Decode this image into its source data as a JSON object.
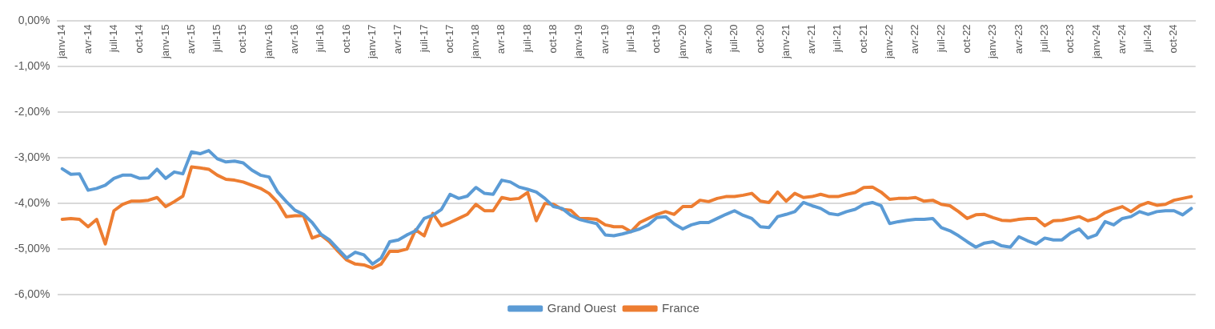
{
  "chart_data": {
    "type": "line",
    "categories": [
      "janv-14",
      null,
      null,
      "avr-14",
      null,
      null,
      "juil-14",
      null,
      null,
      "oct-14",
      null,
      null,
      "janv-15",
      null,
      null,
      "avr-15",
      null,
      null,
      "juil-15",
      null,
      null,
      "oct-15",
      null,
      null,
      "janv-16",
      null,
      null,
      "avr-16",
      null,
      null,
      "juil-16",
      null,
      null,
      "oct-16",
      null,
      null,
      "janv-17",
      null,
      null,
      "avr-17",
      null,
      null,
      "juil-17",
      null,
      null,
      "oct-17",
      null,
      null,
      "janv-18",
      null,
      null,
      "avr-18",
      null,
      null,
      "juil-18",
      null,
      null,
      "oct-18",
      null,
      null,
      "janv-19",
      null,
      null,
      "avr-19",
      null,
      null,
      "juil-19",
      null,
      null,
      "oct-19",
      null,
      null,
      "janv-20",
      null,
      null,
      "avr-20",
      null,
      null,
      "juil-20",
      null,
      null,
      "oct-20",
      null,
      null,
      "janv-21",
      null,
      null,
      "avr-21",
      null,
      null,
      "juil-21",
      null,
      null,
      "oct-21",
      null,
      null,
      "janv-22",
      null,
      null,
      "avr-22",
      null,
      null,
      "juil-22",
      null,
      null,
      "oct-22",
      null,
      null,
      "janv-23",
      null,
      null,
      "avr-23",
      null,
      null,
      "juil-23",
      null,
      null,
      "oct-23",
      null,
      null,
      "janv-24",
      null,
      null,
      "avr-24",
      null,
      null,
      "juil-24",
      null,
      null,
      "oct-24",
      null,
      null
    ],
    "series": [
      {
        "name": "Grand Ouest",
        "color": "#5b9bd5",
        "values": [
          -3.24,
          -3.36,
          -3.35,
          -3.71,
          -3.67,
          -3.6,
          -3.45,
          -3.38,
          -3.38,
          -3.45,
          -3.44,
          -3.25,
          -3.45,
          -3.31,
          -3.35,
          -2.87,
          -2.91,
          -2.84,
          -3.02,
          -3.09,
          -3.07,
          -3.11,
          -3.27,
          -3.38,
          -3.42,
          -3.75,
          -3.96,
          -4.15,
          -4.24,
          -4.42,
          -4.67,
          -4.8,
          -5.0,
          -5.2,
          -5.07,
          -5.13,
          -5.33,
          -5.2,
          -4.84,
          -4.8,
          -4.69,
          -4.6,
          -4.33,
          -4.26,
          -4.13,
          -3.8,
          -3.89,
          -3.84,
          -3.65,
          -3.78,
          -3.8,
          -3.49,
          -3.53,
          -3.64,
          -3.69,
          -3.75,
          -3.89,
          -4.07,
          -4.11,
          -4.26,
          -4.35,
          -4.4,
          -4.44,
          -4.69,
          -4.71,
          -4.67,
          -4.62,
          -4.56,
          -4.47,
          -4.31,
          -4.29,
          -4.45,
          -4.56,
          -4.47,
          -4.42,
          -4.42,
          -4.33,
          -4.24,
          -4.16,
          -4.26,
          -4.33,
          -4.51,
          -4.53,
          -4.29,
          -4.24,
          -4.18,
          -3.98,
          -4.05,
          -4.11,
          -4.22,
          -4.25,
          -4.18,
          -4.13,
          -4.02,
          -3.98,
          -4.05,
          -4.44,
          -4.4,
          -4.37,
          -4.35,
          -4.35,
          -4.33,
          -4.53,
          -4.6,
          -4.71,
          -4.84,
          -4.96,
          -4.87,
          -4.84,
          -4.93,
          -4.96,
          -4.73,
          -4.82,
          -4.89,
          -4.76,
          -4.8,
          -4.8,
          -4.65,
          -4.56,
          -4.76,
          -4.69,
          -4.4,
          -4.47,
          -4.33,
          -4.29,
          -4.18,
          -4.24,
          -4.18,
          -4.16,
          -4.16,
          -4.25,
          -4.11
        ]
      },
      {
        "name": "France",
        "color": "#ed7d31",
        "values": [
          -4.35,
          -4.33,
          -4.35,
          -4.51,
          -4.35,
          -4.89,
          -4.16,
          -4.02,
          -3.95,
          -3.95,
          -3.93,
          -3.87,
          -4.07,
          -3.96,
          -3.84,
          -3.2,
          -3.22,
          -3.25,
          -3.38,
          -3.47,
          -3.49,
          -3.53,
          -3.6,
          -3.67,
          -3.78,
          -3.98,
          -4.29,
          -4.27,
          -4.27,
          -4.76,
          -4.69,
          -4.84,
          -5.05,
          -5.24,
          -5.33,
          -5.35,
          -5.42,
          -5.33,
          -5.05,
          -5.05,
          -5.0,
          -4.58,
          -4.71,
          -4.22,
          -4.49,
          -4.42,
          -4.33,
          -4.24,
          -4.02,
          -4.16,
          -4.16,
          -3.87,
          -3.91,
          -3.89,
          -3.76,
          -4.38,
          -4.0,
          -4.02,
          -4.13,
          -4.15,
          -4.33,
          -4.33,
          -4.35,
          -4.47,
          -4.51,
          -4.51,
          -4.62,
          -4.42,
          -4.33,
          -4.24,
          -4.18,
          -4.24,
          -4.07,
          -4.07,
          -3.93,
          -3.96,
          -3.89,
          -3.85,
          -3.85,
          -3.82,
          -3.78,
          -3.95,
          -3.98,
          -3.75,
          -3.95,
          -3.78,
          -3.87,
          -3.85,
          -3.8,
          -3.85,
          -3.85,
          -3.8,
          -3.76,
          -3.65,
          -3.64,
          -3.75,
          -3.91,
          -3.89,
          -3.89,
          -3.87,
          -3.95,
          -3.93,
          -4.02,
          -4.05,
          -4.18,
          -4.33,
          -4.25,
          -4.24,
          -4.31,
          -4.37,
          -4.38,
          -4.35,
          -4.33,
          -4.33,
          -4.49,
          -4.38,
          -4.37,
          -4.33,
          -4.29,
          -4.38,
          -4.33,
          -4.2,
          -4.13,
          -4.07,
          -4.18,
          -4.05,
          -3.98,
          -4.04,
          -4.02,
          -3.93,
          -3.89,
          -3.85
        ]
      }
    ],
    "ylim": [
      -6,
      0
    ],
    "yticks": [
      {
        "value": 0,
        "label": "0,00%"
      },
      {
        "value": -1,
        "label": "-1,00%"
      },
      {
        "value": -2,
        "label": "-2,00%"
      },
      {
        "value": -3,
        "label": "-3,00%"
      },
      {
        "value": -4,
        "label": "-4,00%"
      },
      {
        "value": -5,
        "label": "-5,00%"
      },
      {
        "value": -6,
        "label": "-6,00%"
      }
    ],
    "grid": "y",
    "legend": "bottom",
    "marker": "none",
    "line_style": "solid"
  }
}
